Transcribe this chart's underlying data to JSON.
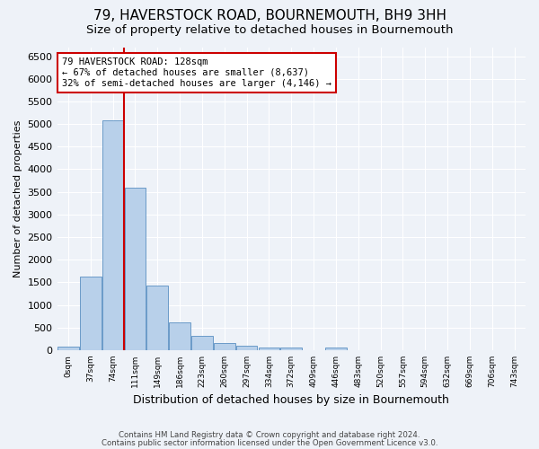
{
  "title": "79, HAVERSTOCK ROAD, BOURNEMOUTH, BH9 3HH",
  "subtitle": "Size of property relative to detached houses in Bournemouth",
  "xlabel": "Distribution of detached houses by size in Bournemouth",
  "ylabel": "Number of detached properties",
  "footer_line1": "Contains HM Land Registry data © Crown copyright and database right 2024.",
  "footer_line2": "Contains public sector information licensed under the Open Government Licence v3.0.",
  "bin_labels": [
    "0sqm",
    "37sqm",
    "74sqm",
    "111sqm",
    "149sqm",
    "186sqm",
    "223sqm",
    "260sqm",
    "297sqm",
    "334sqm",
    "372sqm",
    "409sqm",
    "446sqm",
    "483sqm",
    "520sqm",
    "557sqm",
    "594sqm",
    "632sqm",
    "669sqm",
    "706sqm",
    "743sqm"
  ],
  "bar_values": [
    75,
    1620,
    5080,
    3600,
    1420,
    620,
    310,
    155,
    95,
    60,
    50,
    0,
    60,
    0,
    0,
    0,
    0,
    0,
    0,
    0,
    0
  ],
  "bar_color": "#b8d0ea",
  "bar_edge_color": "#5a8fc2",
  "vline_x_index": 3,
  "vline_color": "#cc0000",
  "annotation_text": "79 HAVERSTOCK ROAD: 128sqm\n← 67% of detached houses are smaller (8,637)\n32% of semi-detached houses are larger (4,146) →",
  "annotation_box_color": "#ffffff",
  "annotation_box_edge": "#cc0000",
  "ylim": [
    0,
    6700
  ],
  "yticks": [
    0,
    500,
    1000,
    1500,
    2000,
    2500,
    3000,
    3500,
    4000,
    4500,
    5000,
    5500,
    6000,
    6500
  ],
  "background_color": "#eef2f8",
  "grid_color": "#ffffff",
  "title_fontsize": 11,
  "subtitle_fontsize": 9.5,
  "ylabel_fontsize": 8,
  "xlabel_fontsize": 9
}
